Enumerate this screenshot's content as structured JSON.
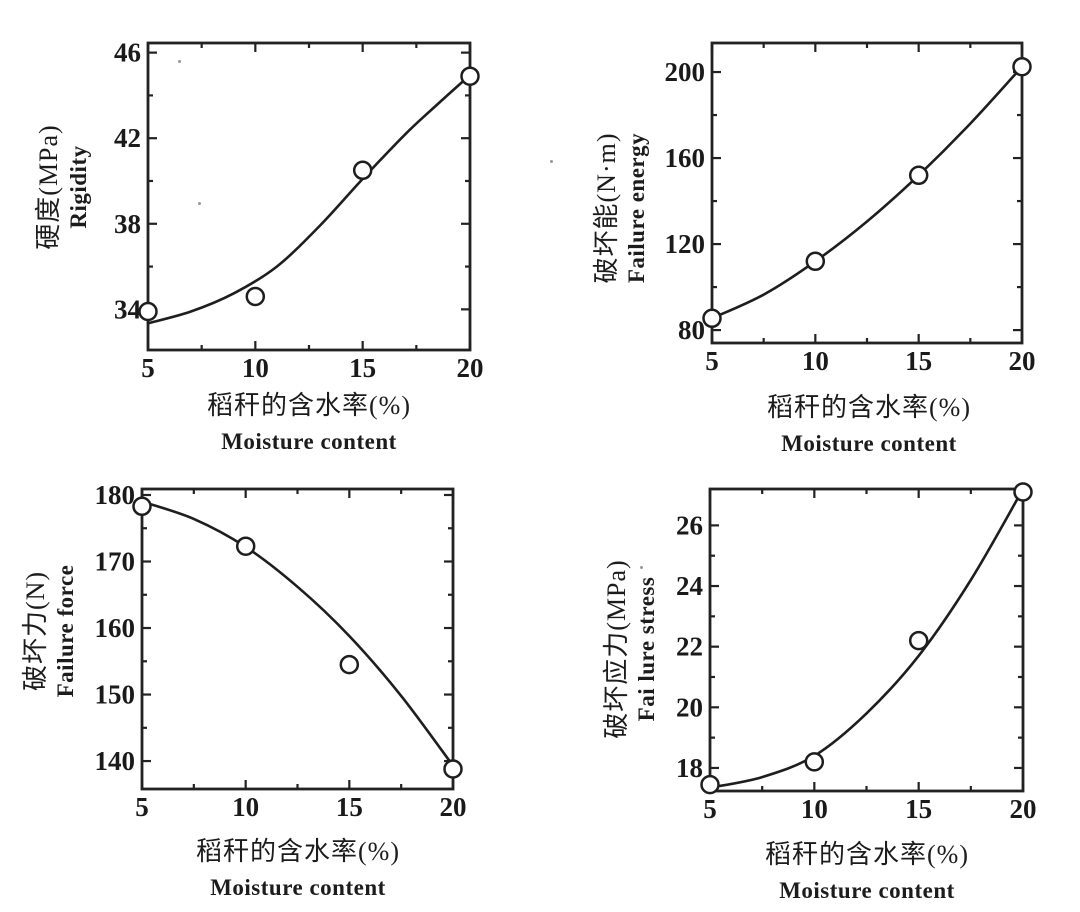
{
  "page": {
    "background": "#ffffff",
    "ink_color": "#1e1e1e",
    "figure_description": "Four scatter plots with fitted curves showing effect of rice-straw moisture content on mechanical properties"
  },
  "chart_data": [
    {
      "type": "scatter",
      "name": "rigidity",
      "ylabel_cn": "硬度(MPa)",
      "ylabel_en": "Rigidity",
      "xlabel_cn": "稻秆的含水率(%)",
      "xlabel_en": "Moisture content",
      "x": [
        5,
        10,
        15,
        20
      ],
      "y": [
        33.9,
        34.6,
        40.5,
        44.9
      ],
      "fit_curve": [
        [
          5,
          33.35
        ],
        [
          7,
          33.9
        ],
        [
          9,
          34.75
        ],
        [
          11,
          36.0
        ],
        [
          13,
          37.9
        ],
        [
          15,
          40.1
        ],
        [
          17,
          42.2
        ],
        [
          18.5,
          43.6
        ],
        [
          20,
          44.95
        ]
      ],
      "xticks": [
        5,
        10,
        15,
        20
      ],
      "yticks": [
        34,
        38,
        42,
        46
      ],
      "xlim": [
        5,
        20
      ],
      "ylim": [
        32.1,
        46.45
      ],
      "grid": false,
      "marker": "open-circle"
    },
    {
      "type": "scatter",
      "name": "failure-energy",
      "ylabel_cn": "破坏能(N·m)",
      "ylabel_en": "Failure energy",
      "xlabel_cn": "稻秆的含水率(%)",
      "xlabel_en": "Moisture content",
      "x": [
        5,
        10,
        15,
        20
      ],
      "y": [
        85.5,
        112,
        152,
        202.5
      ],
      "fit_curve": [
        [
          5,
          85.5
        ],
        [
          7.5,
          96.5
        ],
        [
          10,
          112
        ],
        [
          12.5,
          130.5
        ],
        [
          15,
          152
        ],
        [
          17.5,
          176
        ],
        [
          20,
          202.5
        ]
      ],
      "xticks": [
        5,
        10,
        15,
        20
      ],
      "yticks": [
        80,
        120,
        160,
        200
      ],
      "xlim": [
        5,
        20
      ],
      "ylim": [
        74,
        213.5
      ],
      "grid": false,
      "marker": "open-circle"
    },
    {
      "type": "scatter",
      "name": "failure-force",
      "ylabel_cn": "破坏力(N)",
      "ylabel_en": "Failure force",
      "xlabel_cn": "稻秆的含水率(%)",
      "xlabel_en": "Moisture content",
      "x": [
        5,
        10,
        15,
        20
      ],
      "y": [
        178.3,
        172.3,
        154.5,
        138.8
      ],
      "fit_curve": [
        [
          5,
          179
        ],
        [
          7.5,
          176.4
        ],
        [
          10,
          172.2
        ],
        [
          12.5,
          166.2
        ],
        [
          15,
          158.8
        ],
        [
          17.5,
          149.8
        ],
        [
          20,
          139.3
        ]
      ],
      "xticks": [
        5,
        10,
        15,
        20
      ],
      "yticks": [
        140,
        150,
        160,
        170,
        180
      ],
      "xlim": [
        5,
        20
      ],
      "ylim": [
        135.8,
        180.9
      ],
      "grid": false,
      "marker": "open-circle"
    },
    {
      "type": "scatter",
      "name": "failure-stress",
      "ylabel_cn": "破坏应力(MPa)",
      "ylabel_en": "Fai lure stress",
      "xlabel_cn": "稻秆的含水率(%)",
      "xlabel_en": "Moisture content",
      "x": [
        5,
        10,
        15,
        20
      ],
      "y": [
        17.45,
        18.2,
        22.2,
        27.1
      ],
      "fit_curve": [
        [
          5,
          17.35
        ],
        [
          7.5,
          17.7
        ],
        [
          10,
          18.4
        ],
        [
          12.5,
          19.8
        ],
        [
          15,
          21.7
        ],
        [
          17.5,
          24.2
        ],
        [
          20,
          27.2
        ]
      ],
      "xticks": [
        5,
        10,
        15,
        20
      ],
      "yticks": [
        18,
        20,
        22,
        24,
        26
      ],
      "xlim": [
        5,
        20
      ],
      "ylim": [
        17.24,
        27.2
      ],
      "grid": false,
      "marker": "open-circle"
    }
  ]
}
